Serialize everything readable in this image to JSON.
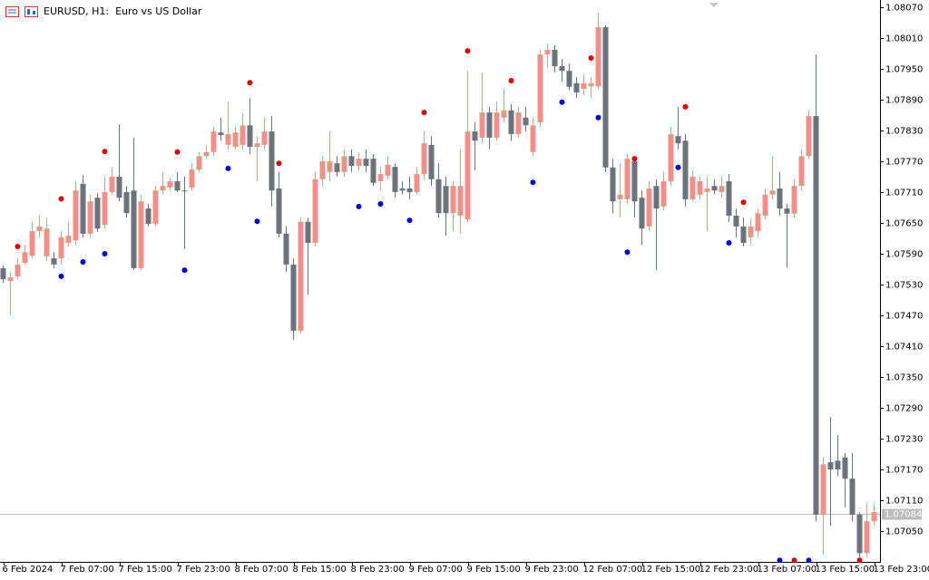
{
  "chart_data": {
    "type": "candlestick",
    "title": "EURUSD, H1:  Euro vs US Dollar",
    "categories": [
      "6 Feb 2024",
      null,
      null,
      null,
      null,
      null,
      null,
      null,
      "7 Feb 07:00",
      null,
      null,
      null,
      null,
      null,
      null,
      null,
      "7 Feb 15:00",
      null,
      null,
      null,
      null,
      null,
      null,
      null,
      "7 Feb 23:00",
      null,
      null,
      null,
      null,
      null,
      null,
      null,
      "8 Feb 07:00",
      null,
      null,
      null,
      null,
      null,
      null,
      null,
      "8 Feb 15:00",
      null,
      null,
      null,
      null,
      null,
      null,
      null,
      "8 Feb 23:00",
      null,
      null,
      null,
      null,
      null,
      null,
      null,
      "9 Feb 07:00",
      null,
      null,
      null,
      null,
      null,
      null,
      null,
      "9 Feb 15:00",
      null,
      null,
      null,
      null,
      null,
      null,
      null,
      "9 Feb 23:00",
      null,
      null,
      null,
      null,
      null,
      null,
      null,
      "12 Feb 07:00",
      null,
      null,
      null,
      null,
      null,
      null,
      null,
      "12 Feb 15:00",
      null,
      null,
      null,
      null,
      null,
      null,
      null,
      "12 Feb 23:00",
      null,
      null,
      null,
      null,
      null,
      null,
      null,
      "13 Feb 07:00",
      null,
      null,
      null,
      null,
      null,
      null,
      null,
      "13 Feb 15:00",
      null,
      null,
      null,
      null,
      null,
      null,
      null,
      "13 Feb 23:00"
    ],
    "open": [
      1.07562,
      1.07537,
      1.07546,
      1.07572,
      1.07586,
      1.07634,
      1.07585,
      1.07581,
      1.07581,
      1.07611,
      1.07616,
      1.07726,
      1.07629,
      1.07699,
      1.07646,
      1.0771,
      1.0774,
      1.0771,
      1.07713,
      1.07562,
      1.07678,
      1.07648,
      1.07713,
      1.07719,
      1.07731,
      1.07713,
      1.07719,
      1.07754,
      1.0778,
      1.07788,
      1.07826,
      1.07802,
      1.07798,
      1.07802,
      1.0784,
      1.07798,
      1.07802,
      1.07828,
      1.07717,
      1.07629,
      1.07569,
      1.0744,
      1.07652,
      1.07611,
      1.07735,
      1.07749,
      1.07766,
      1.07749,
      1.0778,
      1.07761,
      1.07775,
      1.07775,
      1.07731,
      1.07742,
      1.07759,
      1.07717,
      1.07717,
      1.0771,
      1.07745,
      1.07802,
      1.07735,
      1.07722,
      1.07669,
      1.07664,
      1.07657,
      1.07828,
      1.07816,
      1.07865,
      1.07816,
      1.07855,
      1.07869,
      1.07823,
      1.07855,
      1.07788,
      1.07846,
      1.07978,
      1.07987,
      1.07955,
      1.07946,
      1.07922,
      1.07911,
      1.07916,
      1.07916,
      1.08031,
      1.07758,
      1.07696,
      1.07696,
      1.0777,
      1.07699,
      1.07643,
      1.07722,
      1.07682,
      1.07731,
      1.07819,
      1.0781,
      1.07696,
      1.07705,
      1.0771,
      1.07722,
      1.0771,
      1.07731,
      1.07664,
      1.07643,
      1.07622,
      1.07634,
      1.07664,
      1.07705,
      1.07717,
      1.07678,
      1.07668,
      1.07722,
      1.0778,
      1.07858,
      1.07082,
      1.07184,
      1.07187,
      1.07193,
      1.07152,
      1.07082,
      1.07007,
      1.07069
    ],
    "high": [
      1.07567,
      1.07554,
      1.07581,
      1.07607,
      1.07652,
      1.07664,
      1.0766,
      1.07593,
      1.07634,
      1.07652,
      1.07731,
      1.07743,
      1.07705,
      1.07708,
      1.0774,
      1.07758,
      1.07842,
      1.07722,
      1.07816,
      1.07705,
      1.07687,
      1.07722,
      1.07749,
      1.07738,
      1.07749,
      1.0774,
      1.07766,
      1.07788,
      1.07802,
      1.07837,
      1.07855,
      1.07886,
      1.07837,
      1.07863,
      1.07893,
      1.07819,
      1.07855,
      1.07858,
      1.07749,
      1.07643,
      1.07581,
      1.0766,
      1.0766,
      1.07749,
      1.0778,
      1.07828,
      1.0778,
      1.07793,
      1.07793,
      1.07788,
      1.07793,
      1.07784,
      1.07758,
      1.0778,
      1.07766,
      1.07731,
      1.0774,
      1.07758,
      1.07828,
      1.07819,
      1.07766,
      1.0774,
      1.07731,
      1.07793,
      1.07946,
      1.07846,
      1.07943,
      1.07876,
      1.07886,
      1.07911,
      1.07881,
      1.07876,
      1.07876,
      1.07855,
      1.07987,
      1.07999,
      1.07996,
      1.07969,
      1.0796,
      1.07934,
      1.07939,
      1.07934,
      1.08059,
      1.08035,
      1.07775,
      1.07766,
      1.07784,
      1.0778,
      1.07713,
      1.07731,
      1.07735,
      1.07749,
      1.07837,
      1.07876,
      1.07823,
      1.07752,
      1.0774,
      1.0774,
      1.07735,
      1.0774,
      1.07745,
      1.07678,
      1.0766,
      1.07657,
      1.07678,
      1.07717,
      1.0778,
      1.07749,
      1.07687,
      1.07735,
      1.07793,
      1.07869,
      1.07978,
      1.07193,
      1.07272,
      1.07237,
      1.07202,
      1.07202,
      1.07087,
      1.07104,
      1.07104
    ],
    "low": [
      1.07533,
      1.0747,
      1.0754,
      1.07569,
      1.07581,
      1.07622,
      1.07576,
      1.07562,
      1.07569,
      1.07604,
      1.07607,
      1.07622,
      1.07622,
      1.07632,
      1.07639,
      1.07705,
      1.07692,
      1.0766,
      1.07558,
      1.07558,
      1.07643,
      1.07643,
      1.07705,
      1.07713,
      1.0771,
      1.07599,
      1.07713,
      1.07749,
      1.07775,
      1.0778,
      1.0781,
      1.07793,
      1.07793,
      1.07793,
      1.07784,
      1.07731,
      1.07793,
      1.07682,
      1.07622,
      1.07554,
      1.07422,
      1.07435,
      1.0751,
      1.07604,
      1.07722,
      1.07731,
      1.0774,
      1.0774,
      1.07749,
      1.07752,
      1.07749,
      1.07722,
      1.07713,
      1.07735,
      1.07699,
      1.07705,
      1.07696,
      1.07705,
      1.07735,
      1.07722,
      1.0766,
      1.07625,
      1.07634,
      1.07629,
      1.07652,
      1.07752,
      1.07805,
      1.07793,
      1.0781,
      1.07846,
      1.0781,
      1.07816,
      1.07828,
      1.0778,
      1.07837,
      1.07952,
      1.07943,
      1.07925,
      1.07908,
      1.07893,
      1.07899,
      1.07893,
      1.07911,
      1.07749,
      1.07669,
      1.0766,
      1.07687,
      1.0766,
      1.07607,
      1.07634,
      1.07558,
      1.07675,
      1.07722,
      1.07793,
      1.07682,
      1.07692,
      1.07696,
      1.07634,
      1.07706,
      1.07699,
      1.07652,
      1.07622,
      1.07604,
      1.07607,
      1.07622,
      1.07657,
      1.07696,
      1.07664,
      1.07563,
      1.0766,
      1.07713,
      1.07775,
      1.07069,
      1.07004,
      1.0706,
      1.07157,
      1.07096,
      1.07069,
      1.06999,
      1.06999,
      1.0706
    ],
    "close": [
      1.0754,
      1.07544,
      1.07569,
      1.07593,
      1.07634,
      1.07643,
      1.07639,
      1.07569,
      1.07622,
      1.07625,
      1.07713,
      1.07629,
      1.07692,
      1.07639,
      1.0771,
      1.0774,
      1.07699,
      1.07669,
      1.07562,
      1.07692,
      1.07648,
      1.07713,
      1.07722,
      1.07731,
      1.07713,
      1.07712,
      1.07754,
      1.0778,
      1.07788,
      1.07828,
      1.07821,
      1.07823,
      1.07826,
      1.0784,
      1.07798,
      1.07805,
      1.07828,
      1.07713,
      1.07629,
      1.07569,
      1.0744,
      1.07652,
      1.07611,
      1.07735,
      1.0777,
      1.0777,
      1.07749,
      1.0778,
      1.07761,
      1.07775,
      1.07761,
      1.07728,
      1.07745,
      1.07763,
      1.0771,
      1.07713,
      1.0771,
      1.07745,
      1.07805,
      1.07735,
      1.07669,
      1.07669,
      1.07722,
      1.07722,
      1.07828,
      1.0781,
      1.07865,
      1.07816,
      1.07865,
      1.07869,
      1.07823,
      1.07865,
      1.0784,
      1.0784,
      1.07978,
      1.07987,
      1.07955,
      1.07946,
      1.07915,
      1.07904,
      1.07922,
      1.07922,
      1.08031,
      1.07758,
      1.07692,
      1.07705,
      1.07775,
      1.07692,
      1.07639,
      1.07717,
      1.07678,
      1.07731,
      1.07823,
      1.07805,
      1.07696,
      1.0774,
      1.07731,
      1.07717,
      1.07713,
      1.07722,
      1.07664,
      1.07643,
      1.07611,
      1.07643,
      1.07669,
      1.07705,
      1.07713,
      1.07678,
      1.07668,
      1.07722,
      1.0778,
      1.07858,
      1.07082,
      1.0718,
      1.0717,
      1.0717,
      1.07152,
      1.07082,
      1.07007,
      1.07069,
      1.07087
    ],
    "up_color": "#f1928a",
    "down_color": "#6c737a",
    "series": [
      {
        "color": "#dd0000",
        "values": [
          null,
          null,
          1.07604,
          null,
          null,
          null,
          null,
          null,
          1.07697,
          null,
          null,
          null,
          null,
          null,
          1.07789,
          null,
          null,
          null,
          null,
          null,
          null,
          null,
          null,
          null,
          1.07788,
          null,
          null,
          null,
          null,
          null,
          null,
          null,
          null,
          null,
          1.07923,
          null,
          null,
          null,
          1.07766,
          null,
          null,
          null,
          null,
          null,
          null,
          null,
          null,
          null,
          null,
          null,
          null,
          null,
          null,
          null,
          null,
          null,
          null,
          null,
          1.07865,
          null,
          null,
          null,
          null,
          null,
          1.07985,
          null,
          null,
          null,
          null,
          null,
          1.07927,
          null,
          null,
          null,
          null,
          null,
          null,
          null,
          null,
          null,
          null,
          1.07971,
          null,
          null,
          null,
          null,
          null,
          1.07775,
          null,
          null,
          null,
          null,
          null,
          null,
          1.07876,
          null,
          null,
          null,
          null,
          null,
          null,
          null,
          1.0769,
          null,
          null,
          null,
          null,
          null,
          null,
          1.06993,
          null,
          null,
          null,
          null,
          null,
          null,
          null,
          null,
          1.06993,
          null,
          null
        ]
      },
      {
        "color": "#0000dd",
        "values": [
          null,
          null,
          null,
          null,
          null,
          null,
          null,
          null,
          1.07546,
          null,
          null,
          1.07574,
          null,
          null,
          1.0759,
          null,
          null,
          null,
          null,
          null,
          null,
          null,
          null,
          null,
          null,
          1.07558,
          null,
          null,
          null,
          null,
          null,
          1.07756,
          null,
          null,
          null,
          1.07653,
          null,
          null,
          null,
          null,
          null,
          null,
          null,
          null,
          null,
          null,
          null,
          null,
          null,
          1.07682,
          null,
          null,
          1.07687,
          null,
          null,
          null,
          1.07655,
          null,
          null,
          null,
          null,
          null,
          null,
          null,
          null,
          null,
          null,
          null,
          null,
          null,
          null,
          null,
          null,
          1.07729,
          null,
          null,
          null,
          1.07885,
          null,
          null,
          null,
          null,
          1.07855,
          null,
          null,
          null,
          1.07593,
          null,
          null,
          null,
          null,
          null,
          null,
          1.07758,
          null,
          null,
          null,
          null,
          null,
          null,
          1.07611,
          null,
          null,
          null,
          null,
          null,
          null,
          1.06993,
          null,
          null,
          null,
          1.06993,
          null,
          null,
          null,
          null,
          null,
          null,
          null,
          null,
          null
        ]
      }
    ],
    "current_price": 1.07084,
    "ylim": [
      1.0699,
      1.08084
    ],
    "yticks": [
      {
        "value": 1.0807,
        "label": "1.08070"
      },
      {
        "value": 1.0801,
        "label": "1.08010"
      },
      {
        "value": 1.0795,
        "label": "1.07950"
      },
      {
        "value": 1.0789,
        "label": "1.07890"
      },
      {
        "value": 1.0783,
        "label": "1.07830"
      },
      {
        "value": 1.0777,
        "label": "1.07770"
      },
      {
        "value": 1.0771,
        "label": "1.07710"
      },
      {
        "value": 1.0765,
        "label": "1.07650"
      },
      {
        "value": 1.0759,
        "label": "1.07590"
      },
      {
        "value": 1.0753,
        "label": "1.07530"
      },
      {
        "value": 1.0747,
        "label": "1.07470"
      },
      {
        "value": 1.0741,
        "label": "1.07410"
      },
      {
        "value": 1.0735,
        "label": "1.07350"
      },
      {
        "value": 1.0729,
        "label": "1.07290"
      },
      {
        "value": 1.0723,
        "label": "1.07230"
      },
      {
        "value": 1.0717,
        "label": "1.07170"
      },
      {
        "value": 1.0711,
        "label": "1.07110"
      },
      {
        "value": 1.0705,
        "label": "1.07050"
      }
    ]
  }
}
